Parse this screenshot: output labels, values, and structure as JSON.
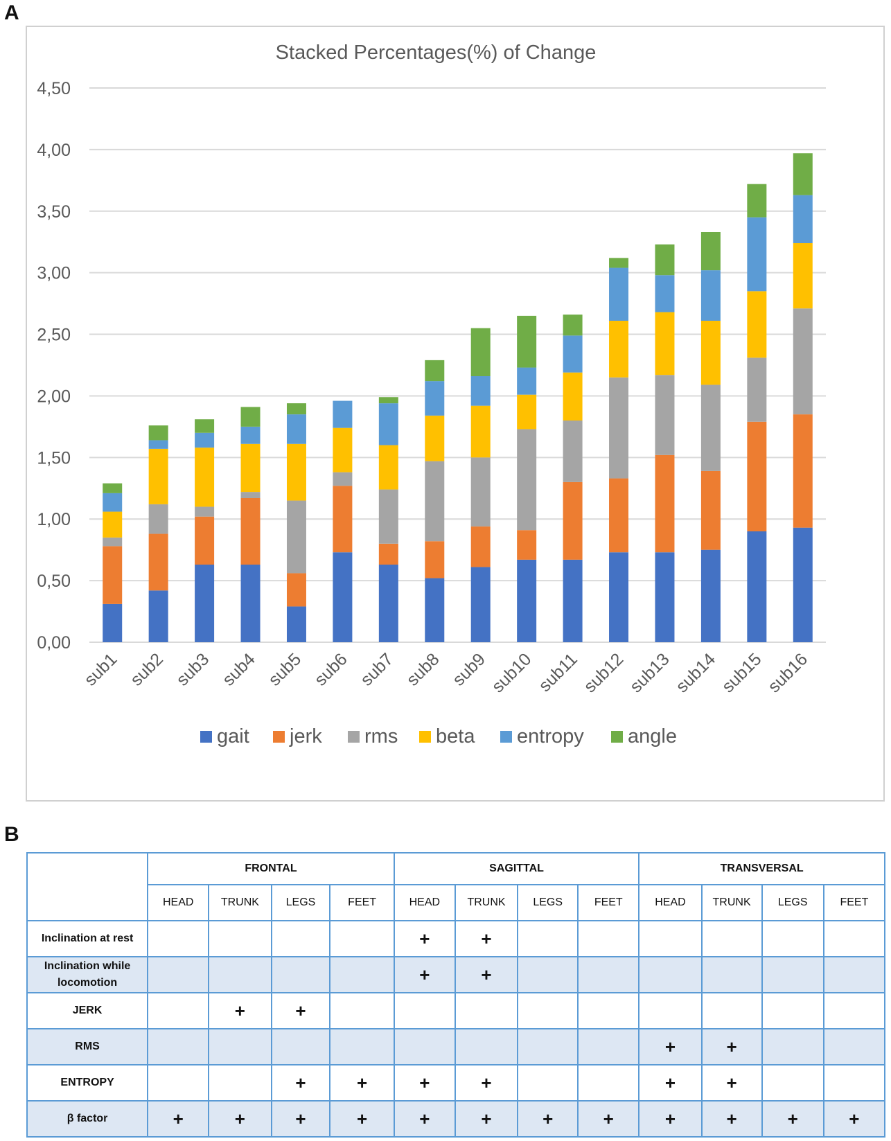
{
  "panel_a_label": "A",
  "panel_b_label": "B",
  "colors": {
    "gait": "#4472c4",
    "jerk": "#ed7d31",
    "rms": "#a5a5a5",
    "beta": "#ffc000",
    "entropy": "#5b9bd5",
    "angle": "#70ad47",
    "gridline": "#d9d9d9",
    "table_border": "#5b9bd5",
    "table_stripe": "#dde7f3"
  },
  "chart_data": {
    "type": "bar",
    "stacked": true,
    "title": "Stacked Percentages(%) of Change",
    "xlabel": "",
    "ylabel": "",
    "ylim": [
      0,
      4.5
    ],
    "yticks": [
      "0,00",
      "0,50",
      "1,00",
      "1,50",
      "2,00",
      "2,50",
      "3,00",
      "3,50",
      "4,00",
      "4,50"
    ],
    "ytick_values": [
      0,
      0.5,
      1.0,
      1.5,
      2.0,
      2.5,
      3.0,
      3.5,
      4.0,
      4.5
    ],
    "grid": true,
    "legend_position": "bottom",
    "categories": [
      "sub1",
      "sub2",
      "sub3",
      "sub4",
      "sub5",
      "sub6",
      "sub7",
      "sub8",
      "sub9",
      "sub10",
      "sub11",
      "sub12",
      "sub13",
      "sub14",
      "sub15",
      "sub16"
    ],
    "series": [
      {
        "name": "gait",
        "values": [
          0.31,
          0.42,
          0.63,
          0.63,
          0.29,
          0.73,
          0.63,
          0.52,
          0.61,
          0.67,
          0.67,
          0.73,
          0.73,
          0.75,
          0.9,
          0.93
        ]
      },
      {
        "name": "jerk",
        "values": [
          0.47,
          0.46,
          0.39,
          0.54,
          0.27,
          0.54,
          0.17,
          0.3,
          0.33,
          0.24,
          0.63,
          0.6,
          0.79,
          0.64,
          0.89,
          0.92
        ]
      },
      {
        "name": "rms",
        "values": [
          0.07,
          0.24,
          0.08,
          0.05,
          0.59,
          0.11,
          0.44,
          0.65,
          0.56,
          0.82,
          0.5,
          0.82,
          0.65,
          0.7,
          0.52,
          0.86
        ]
      },
      {
        "name": "beta",
        "values": [
          0.21,
          0.45,
          0.48,
          0.39,
          0.46,
          0.36,
          0.36,
          0.37,
          0.42,
          0.28,
          0.39,
          0.46,
          0.51,
          0.52,
          0.54,
          0.53
        ]
      },
      {
        "name": "entropy",
        "values": [
          0.15,
          0.07,
          0.12,
          0.14,
          0.24,
          0.22,
          0.34,
          0.28,
          0.24,
          0.22,
          0.3,
          0.43,
          0.3,
          0.41,
          0.6,
          0.39
        ]
      },
      {
        "name": "angle",
        "values": [
          0.08,
          0.12,
          0.11,
          0.16,
          0.09,
          0.0,
          0.05,
          0.17,
          0.39,
          0.42,
          0.17,
          0.08,
          0.25,
          0.31,
          0.27,
          0.34
        ]
      }
    ]
  },
  "table": {
    "planes": [
      "FRONTAL",
      "SAGITTAL",
      "TRANSVERSAL"
    ],
    "segments": [
      "HEAD",
      "TRUNK",
      "LEGS",
      "FEET"
    ],
    "mark_symbol": "+",
    "rows": [
      {
        "label": "Inclination at rest",
        "marks": [
          false,
          false,
          false,
          false,
          true,
          true,
          false,
          false,
          false,
          false,
          false,
          false
        ]
      },
      {
        "label": "Inclination while locomotion",
        "marks": [
          false,
          false,
          false,
          false,
          true,
          true,
          false,
          false,
          false,
          false,
          false,
          false
        ]
      },
      {
        "label": "JERK",
        "marks": [
          false,
          true,
          true,
          false,
          false,
          false,
          false,
          false,
          false,
          false,
          false,
          false
        ]
      },
      {
        "label": "RMS",
        "marks": [
          false,
          false,
          false,
          false,
          false,
          false,
          false,
          false,
          true,
          true,
          false,
          false
        ]
      },
      {
        "label": "ENTROPY",
        "marks": [
          false,
          false,
          true,
          true,
          true,
          true,
          false,
          false,
          true,
          true,
          false,
          false
        ]
      },
      {
        "label": "β factor",
        "marks": [
          true,
          true,
          true,
          true,
          true,
          true,
          true,
          true,
          true,
          true,
          true,
          true
        ]
      }
    ]
  }
}
